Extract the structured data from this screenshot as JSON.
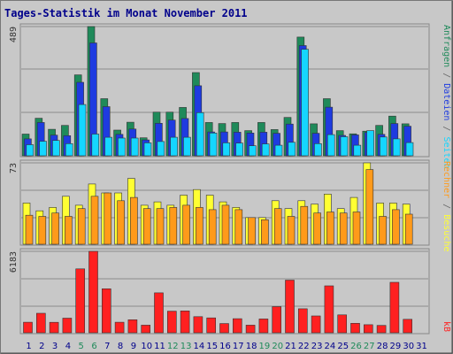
{
  "title": "Tages-Statistik im Monat November 2011",
  "colors": {
    "anfragen": "#1f8a5a",
    "dateien": "#1e3be0",
    "seiten": "#15d6ff",
    "besuche": "#ffff33",
    "rechner": "#ff9a1a",
    "kb": "#ff2020",
    "weekend_day": "#1f8a5a",
    "weekday_day": "#00008b",
    "outline": "#666666"
  },
  "chart_data": [
    {
      "type": "bar",
      "name": "hits-panel",
      "y_max_label": "489",
      "ylim": [
        0,
        489
      ],
      "right_label_parts": [
        {
          "text": "Anfragen",
          "color_key": "anfragen"
        },
        {
          "text": " / ",
          "color_key": "outline"
        },
        {
          "text": "Dateien",
          "color_key": "dateien"
        },
        {
          "text": " / ",
          "color_key": "outline"
        },
        {
          "text": "Seiten",
          "color_key": "seiten"
        }
      ],
      "categories": [
        "1",
        "2",
        "3",
        "4",
        "5",
        "6",
        "7",
        "8",
        "9",
        "10",
        "11",
        "12",
        "13",
        "14",
        "15",
        "16",
        "17",
        "18",
        "19",
        "20",
        "21",
        "22",
        "23",
        "24",
        "25",
        "26",
        "27",
        "28",
        "29",
        "30",
        "31"
      ],
      "series": [
        {
          "name": "Anfragen",
          "color_key": "anfragen",
          "values": [
            82,
            142,
            100,
            115,
            306,
            489,
            216,
            97,
            127,
            68,
            165,
            165,
            183,
            315,
            126,
            122,
            126,
            95,
            126,
            99,
            145,
            449,
            121,
            216,
            95,
            83,
            93,
            115,
            150,
            121,
            0
          ]
        },
        {
          "name": "Dateien",
          "color_key": "dateien",
          "values": [
            64,
            126,
            78,
            76,
            278,
            427,
            186,
            81,
            101,
            60,
            123,
            135,
            141,
            265,
            90,
            90,
            89,
            86,
            89,
            85,
            120,
            417,
            85,
            184,
            77,
            79,
            88,
            81,
            122,
            112,
            0
          ]
        },
        {
          "name": "Seiten",
          "color_key": "seiten",
          "values": [
            42,
            55,
            58,
            46,
            194,
            82,
            70,
            67,
            67,
            49,
            54,
            70,
            70,
            163,
            86,
            49,
            48,
            38,
            45,
            40,
            51,
            403,
            46,
            80,
            72,
            40,
            95,
            71,
            64,
            50,
            0
          ]
        }
      ]
    },
    {
      "type": "bar",
      "name": "visits-panel",
      "y_max_label": "73",
      "ylim": [
        0,
        73
      ],
      "right_label_parts": [
        {
          "text": "Rechner",
          "color_key": "rechner"
        },
        {
          "text": " / ",
          "color_key": "outline"
        },
        {
          "text": "Besuche",
          "color_key": "besuche"
        }
      ],
      "categories": [
        "1",
        "2",
        "3",
        "4",
        "5",
        "6",
        "7",
        "8",
        "9",
        "10",
        "11",
        "12",
        "13",
        "14",
        "15",
        "16",
        "17",
        "18",
        "19",
        "20",
        "21",
        "22",
        "23",
        "24",
        "25",
        "26",
        "27",
        "28",
        "29",
        "30",
        "31"
      ],
      "series": [
        {
          "name": "Besuche",
          "color_key": "besuche",
          "values": [
            37,
            30,
            33,
            43,
            35,
            54,
            46,
            46,
            59,
            35,
            38,
            35,
            44,
            49,
            44,
            38,
            33,
            24,
            24,
            39,
            32,
            39,
            36,
            45,
            32,
            42,
            73,
            37,
            37,
            36,
            0
          ]
        },
        {
          "name": "Rechner",
          "color_key": "rechner",
          "values": [
            26,
            25,
            28,
            25,
            32,
            43,
            46,
            39,
            42,
            32,
            32,
            33,
            35,
            33,
            31,
            35,
            31,
            24,
            22,
            32,
            25,
            34,
            28,
            29,
            28,
            29,
            67,
            25,
            31,
            27,
            0
          ]
        }
      ]
    },
    {
      "type": "bar",
      "name": "kb-panel",
      "y_max_label": "6183",
      "ylim": [
        0,
        6183
      ],
      "right_label_parts": [
        {
          "text": "kB",
          "color_key": "kb"
        }
      ],
      "categories": [
        "1",
        "2",
        "3",
        "4",
        "5",
        "6",
        "7",
        "8",
        "9",
        "10",
        "11",
        "12",
        "13",
        "14",
        "15",
        "16",
        "17",
        "18",
        "19",
        "20",
        "21",
        "22",
        "23",
        "24",
        "25",
        "26",
        "27",
        "28",
        "29",
        "30",
        "31"
      ],
      "series": [
        {
          "name": "kB",
          "color_key": "kb",
          "values": [
            800,
            1480,
            790,
            1110,
            4850,
            6183,
            3340,
            800,
            990,
            580,
            3030,
            1640,
            1660,
            1220,
            1130,
            700,
            1070,
            580,
            1050,
            1980,
            4000,
            1820,
            1280,
            3560,
            1360,
            720,
            610,
            560,
            3830,
            1020,
            0
          ]
        }
      ]
    }
  ],
  "x_axis": {
    "day_labels": [
      "1",
      "2",
      "3",
      "4",
      "5",
      "6",
      "7",
      "8",
      "9",
      "10",
      "11",
      "12",
      "13",
      "14",
      "15",
      "16",
      "17",
      "18",
      "19",
      "20",
      "21",
      "22",
      "23",
      "24",
      "25",
      "26",
      "27",
      "28",
      "29",
      "30",
      "31"
    ],
    "weekend_days": [
      "5",
      "6",
      "12",
      "13",
      "19",
      "20",
      "26",
      "27"
    ]
  }
}
